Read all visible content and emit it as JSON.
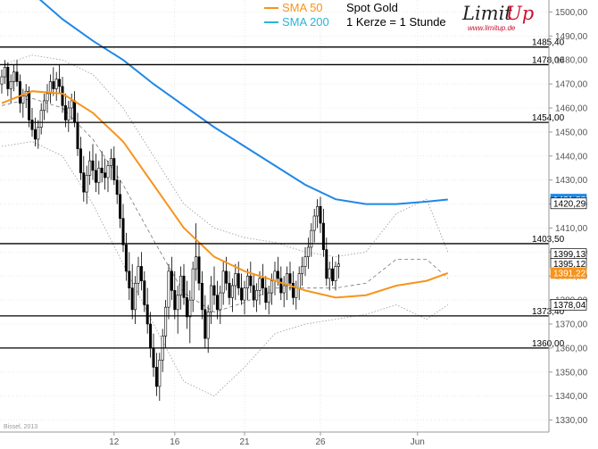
{
  "legend": {
    "sma50_label": "SMA 50",
    "sma200_label": "SMA 200",
    "title": "Spot Gold",
    "subtitle": "1 Kerze = 1 Stunde"
  },
  "logo": {
    "name": "LimitUp",
    "url": "www.limitup.de"
  },
  "watermark": "Bissel, 2013",
  "colors": {
    "sma50": "#f7941d",
    "sma200": "#1e88e5",
    "candle_up": "#ffffff",
    "candle_down": "#000000",
    "level": "#000000",
    "bollinger": "#888888"
  },
  "chart_data": {
    "type": "candlestick",
    "title": "Spot Gold",
    "subtitle": "1 Kerze = 1 Stunde",
    "ylim": [
      1325,
      1505
    ],
    "y_ticks": [
      "1330,00",
      "1340,00",
      "1350,00",
      "1360,00",
      "1370,00",
      "1380,00",
      "1390,00",
      "1400,00",
      "1410,00",
      "1420,00",
      "1430,00",
      "1440,00",
      "1450,00",
      "1460,00",
      "1470,00",
      "1480,00",
      "1490,00",
      "1500,00"
    ],
    "x_ticks": [
      "12",
      "16",
      "21",
      "26",
      "Jun"
    ],
    "x_tick_index": [
      37,
      57,
      80,
      105,
      137
    ],
    "horizontal_levels": [
      {
        "value": 1485.4,
        "label": "1485,40"
      },
      {
        "value": 1478.06,
        "label": "1478,06"
      },
      {
        "value": 1454.0,
        "label": "1454,00"
      },
      {
        "value": 1403.5,
        "label": "1403,50"
      },
      {
        "value": 1373.4,
        "label": "1373,40"
      },
      {
        "value": 1360.0,
        "label": "1360,00"
      }
    ],
    "value_tags": [
      {
        "value": 1421.88,
        "label": "1421,88",
        "color": "#1e88e5"
      },
      {
        "value": 1420.29,
        "label": "1420,29",
        "color": "#ffffff"
      },
      {
        "value": 1399.13,
        "label": "1399,13",
        "color": "#ffffff"
      },
      {
        "value": 1395.12,
        "label": "1395,12",
        "color": "#ffffff"
      },
      {
        "value": 1391.22,
        "label": "1391,22",
        "color": "#f7941d"
      },
      {
        "value": 1378.04,
        "label": "1378,04",
        "color": "#ffffff"
      }
    ],
    "candles": [
      [
        1470,
        1476,
        1466,
        1473
      ],
      [
        1473,
        1480,
        1470,
        1477
      ],
      [
        1477,
        1479,
        1465,
        1468
      ],
      [
        1468,
        1474,
        1462,
        1471
      ],
      [
        1471,
        1478,
        1467,
        1475
      ],
      [
        1475,
        1480,
        1469,
        1471
      ],
      [
        1471,
        1474,
        1458,
        1462
      ],
      [
        1462,
        1468,
        1456,
        1465
      ],
      [
        1465,
        1470,
        1460,
        1467
      ],
      [
        1467,
        1469,
        1452,
        1455
      ],
      [
        1455,
        1460,
        1448,
        1451
      ],
      [
        1451,
        1456,
        1444,
        1447
      ],
      [
        1447,
        1455,
        1443,
        1452
      ],
      [
        1452,
        1462,
        1449,
        1459
      ],
      [
        1459,
        1466,
        1455,
        1463
      ],
      [
        1463,
        1470,
        1458,
        1466
      ],
      [
        1466,
        1474,
        1462,
        1471
      ],
      [
        1471,
        1477,
        1465,
        1468
      ],
      [
        1468,
        1475,
        1463,
        1472
      ],
      [
        1472,
        1478,
        1466,
        1469
      ],
      [
        1469,
        1473,
        1458,
        1461
      ],
      [
        1461,
        1466,
        1452,
        1455
      ],
      [
        1455,
        1463,
        1450,
        1460
      ],
      [
        1460,
        1466,
        1455,
        1463
      ],
      [
        1463,
        1467,
        1452,
        1454
      ],
      [
        1454,
        1458,
        1440,
        1443
      ],
      [
        1443,
        1448,
        1430,
        1433
      ],
      [
        1433,
        1440,
        1421,
        1425
      ],
      [
        1425,
        1436,
        1420,
        1432
      ],
      [
        1432,
        1442,
        1428,
        1438
      ],
      [
        1438,
        1445,
        1430,
        1434
      ],
      [
        1434,
        1441,
        1425,
        1429
      ],
      [
        1429,
        1438,
        1424,
        1435
      ],
      [
        1435,
        1442,
        1429,
        1433
      ],
      [
        1433,
        1439,
        1426,
        1431
      ],
      [
        1431,
        1438,
        1425,
        1436
      ],
      [
        1436,
        1443,
        1430,
        1439
      ],
      [
        1439,
        1444,
        1428,
        1430
      ],
      [
        1430,
        1436,
        1420,
        1424
      ],
      [
        1424,
        1430,
        1410,
        1414
      ],
      [
        1414,
        1420,
        1400,
        1403
      ],
      [
        1403,
        1408,
        1388,
        1392
      ],
      [
        1392,
        1400,
        1380,
        1385
      ],
      [
        1385,
        1395,
        1372,
        1376
      ],
      [
        1376,
        1390,
        1370,
        1387
      ],
      [
        1387,
        1398,
        1382,
        1394
      ],
      [
        1394,
        1400,
        1384,
        1388
      ],
      [
        1388,
        1392,
        1375,
        1378
      ],
      [
        1378,
        1385,
        1366,
        1370
      ],
      [
        1370,
        1375,
        1356,
        1360
      ],
      [
        1360,
        1366,
        1348,
        1352
      ],
      [
        1352,
        1358,
        1340,
        1344
      ],
      [
        1344,
        1358,
        1338,
        1355
      ],
      [
        1355,
        1368,
        1350,
        1365
      ],
      [
        1365,
        1380,
        1360,
        1377
      ],
      [
        1377,
        1395,
        1372,
        1392
      ],
      [
        1392,
        1398,
        1380,
        1384
      ],
      [
        1384,
        1392,
        1372,
        1376
      ],
      [
        1376,
        1386,
        1366,
        1382
      ],
      [
        1382,
        1394,
        1376,
        1390
      ],
      [
        1390,
        1395,
        1378,
        1381
      ],
      [
        1381,
        1388,
        1368,
        1373
      ],
      [
        1373,
        1384,
        1362,
        1380
      ],
      [
        1380,
        1396,
        1375,
        1393
      ],
      [
        1393,
        1412,
        1388,
        1398
      ],
      [
        1398,
        1404,
        1384,
        1387
      ],
      [
        1387,
        1392,
        1372,
        1376
      ],
      [
        1376,
        1382,
        1360,
        1364
      ],
      [
        1364,
        1378,
        1358,
        1375
      ],
      [
        1375,
        1390,
        1370,
        1386
      ],
      [
        1386,
        1394,
        1378,
        1382
      ],
      [
        1382,
        1388,
        1372,
        1376
      ],
      [
        1376,
        1386,
        1370,
        1383
      ],
      [
        1383,
        1396,
        1378,
        1392
      ],
      [
        1392,
        1398,
        1384,
        1387
      ],
      [
        1387,
        1392,
        1378,
        1381
      ],
      [
        1381,
        1389,
        1375,
        1386
      ],
      [
        1386,
        1395,
        1380,
        1391
      ],
      [
        1391,
        1396,
        1382,
        1385
      ],
      [
        1385,
        1391,
        1378,
        1380
      ],
      [
        1380,
        1388,
        1374,
        1385
      ],
      [
        1385,
        1393,
        1380,
        1390
      ],
      [
        1390,
        1396,
        1383,
        1386
      ],
      [
        1386,
        1391,
        1377,
        1380
      ],
      [
        1380,
        1387,
        1375,
        1384
      ],
      [
        1384,
        1392,
        1378,
        1389
      ],
      [
        1389,
        1395,
        1382,
        1385
      ],
      [
        1385,
        1390,
        1376,
        1379
      ],
      [
        1379,
        1386,
        1374,
        1383
      ],
      [
        1383,
        1391,
        1378,
        1388
      ],
      [
        1388,
        1396,
        1382,
        1392
      ],
      [
        1392,
        1398,
        1386,
        1389
      ],
      [
        1389,
        1394,
        1380,
        1383
      ],
      [
        1383,
        1390,
        1377,
        1386
      ],
      [
        1386,
        1394,
        1380,
        1391
      ],
      [
        1391,
        1396,
        1384,
        1387
      ],
      [
        1387,
        1392,
        1378,
        1381
      ],
      [
        1381,
        1388,
        1376,
        1385
      ],
      [
        1385,
        1394,
        1380,
        1391
      ],
      [
        1391,
        1398,
        1386,
        1394
      ],
      [
        1394,
        1402,
        1390,
        1398
      ],
      [
        1398,
        1406,
        1393,
        1402
      ],
      [
        1402,
        1412,
        1398,
        1409
      ],
      [
        1409,
        1418,
        1404,
        1415
      ],
      [
        1415,
        1422,
        1410,
        1419
      ],
      [
        1419,
        1423,
        1408,
        1412
      ],
      [
        1412,
        1418,
        1398,
        1401
      ],
      [
        1401,
        1406,
        1386,
        1389
      ],
      [
        1389,
        1396,
        1384,
        1393
      ],
      [
        1393,
        1398,
        1386,
        1388
      ],
      [
        1388,
        1396,
        1384,
        1394
      ],
      [
        1394,
        1399,
        1389,
        1395
      ]
    ],
    "sma50": [
      [
        0,
        1462
      ],
      [
        10,
        1467
      ],
      [
        20,
        1466
      ],
      [
        30,
        1458
      ],
      [
        40,
        1446
      ],
      [
        50,
        1428
      ],
      [
        60,
        1410
      ],
      [
        70,
        1398
      ],
      [
        80,
        1392
      ],
      [
        90,
        1388
      ],
      [
        100,
        1384
      ],
      [
        110,
        1381
      ],
      [
        120,
        1382
      ],
      [
        130,
        1386
      ],
      [
        140,
        1388
      ],
      [
        147,
        1391.22
      ]
    ],
    "sma200": [
      [
        0,
        1520
      ],
      [
        10,
        1508
      ],
      [
        20,
        1497
      ],
      [
        30,
        1488
      ],
      [
        40,
        1480
      ],
      [
        50,
        1470
      ],
      [
        60,
        1461
      ],
      [
        70,
        1452
      ],
      [
        80,
        1444
      ],
      [
        90,
        1436
      ],
      [
        100,
        1428
      ],
      [
        110,
        1422
      ],
      [
        120,
        1420
      ],
      [
        130,
        1420
      ],
      [
        140,
        1421
      ],
      [
        147,
        1421.88
      ]
    ],
    "bb_upper": [
      [
        0,
        1478
      ],
      [
        10,
        1482
      ],
      [
        20,
        1480
      ],
      [
        30,
        1474
      ],
      [
        40,
        1460
      ],
      [
        50,
        1440
      ],
      [
        60,
        1420
      ],
      [
        70,
        1410
      ],
      [
        80,
        1406
      ],
      [
        90,
        1404
      ],
      [
        100,
        1400
      ],
      [
        110,
        1398
      ],
      [
        120,
        1400
      ],
      [
        130,
        1416
      ],
      [
        140,
        1422
      ],
      [
        147,
        1400
      ]
    ],
    "bb_lower": [
      [
        0,
        1444
      ],
      [
        10,
        1446
      ],
      [
        20,
        1440
      ],
      [
        30,
        1420
      ],
      [
        40,
        1395
      ],
      [
        50,
        1370
      ],
      [
        60,
        1346
      ],
      [
        70,
        1340
      ],
      [
        80,
        1352
      ],
      [
        90,
        1366
      ],
      [
        100,
        1370
      ],
      [
        110,
        1372
      ],
      [
        120,
        1374
      ],
      [
        130,
        1378
      ],
      [
        140,
        1372
      ],
      [
        147,
        1378
      ]
    ],
    "bb_mid": [
      [
        0,
        1461
      ],
      [
        10,
        1464
      ],
      [
        20,
        1460
      ],
      [
        30,
        1447
      ],
      [
        40,
        1428
      ],
      [
        50,
        1405
      ],
      [
        60,
        1383
      ],
      [
        70,
        1375
      ],
      [
        80,
        1379
      ],
      [
        90,
        1385
      ],
      [
        100,
        1385
      ],
      [
        110,
        1385
      ],
      [
        120,
        1387
      ],
      [
        130,
        1397
      ],
      [
        140,
        1397
      ],
      [
        147,
        1389
      ]
    ]
  }
}
